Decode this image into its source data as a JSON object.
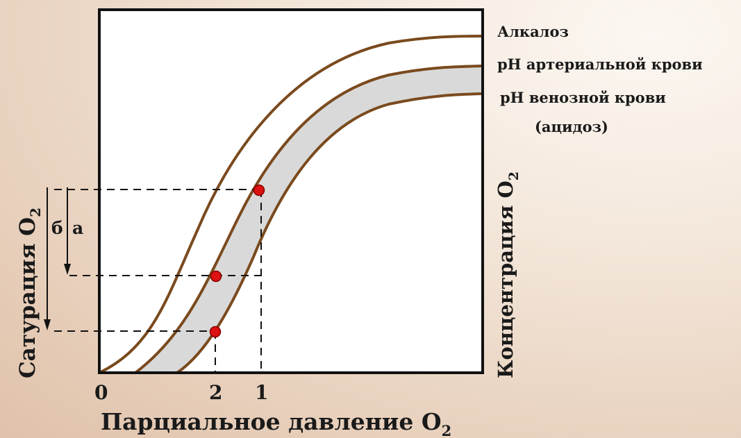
{
  "curves": {
    "alkalosis": "Алкалоз",
    "arterial": "pH артериальной крови",
    "venous": "pH венозной крови",
    "venous_note": "(ацидоз)"
  },
  "axes": {
    "x_label": "Парциальное давление O",
    "x_label_sub": "2",
    "y_left_label": "Сатурация O",
    "y_left_sub": "2",
    "y_right_label": "Концентрация O",
    "y_right_sub": "2"
  },
  "ticks": {
    "origin": "0",
    "point_2": "2",
    "point_1": "1"
  },
  "arrows": {
    "b": "б",
    "a": "а"
  },
  "colors": {
    "curve": "#7a4a1e",
    "band_fill": "#d9d9d9",
    "point": "#dd1111",
    "frame": "#111111",
    "dashed": "#111111"
  }
}
